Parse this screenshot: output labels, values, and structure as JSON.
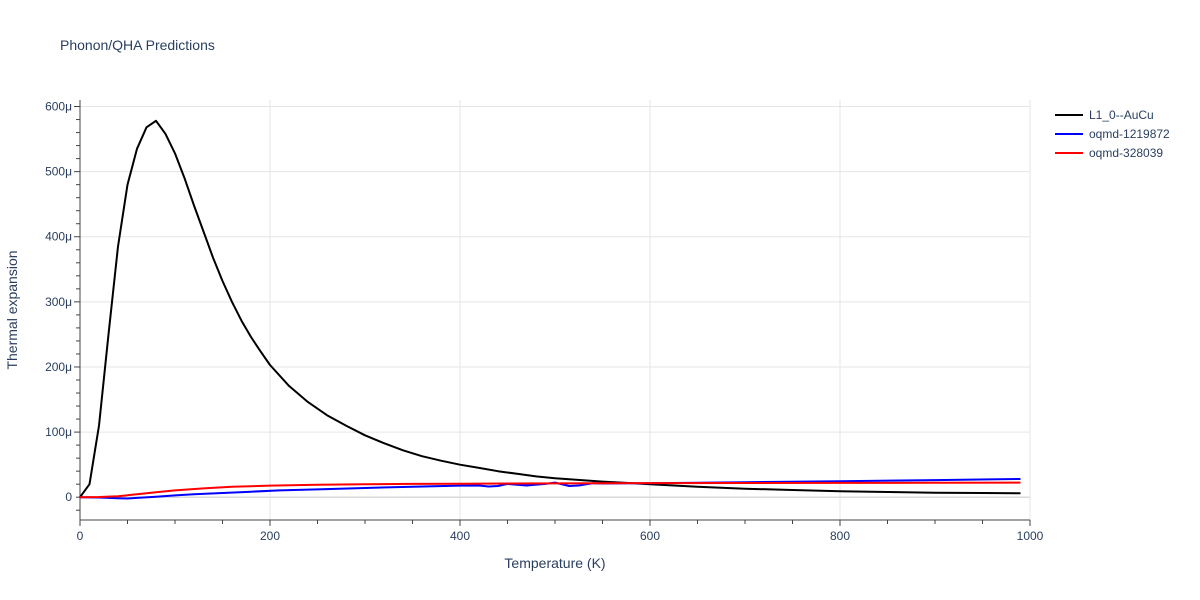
{
  "chart_data": {
    "type": "line",
    "title": "Phonon/QHA Predictions",
    "xlabel": "Temperature (K)",
    "ylabel": "Thermal expansion",
    "xlim": [
      0,
      1000
    ],
    "ylim": [
      -3.5e-05,
      0.00061
    ],
    "x_ticks": [
      {
        "value": 0,
        "label": "0"
      },
      {
        "value": 200,
        "label": "200"
      },
      {
        "value": 400,
        "label": "400"
      },
      {
        "value": 600,
        "label": "600"
      },
      {
        "value": 800,
        "label": "800"
      },
      {
        "value": 1000,
        "label": "1000"
      }
    ],
    "y_ticks": [
      {
        "value": 0,
        "label": "0"
      },
      {
        "value": 0.0001,
        "label": "100μ"
      },
      {
        "value": 0.0002,
        "label": "200μ"
      },
      {
        "value": 0.0003,
        "label": "300μ"
      },
      {
        "value": 0.0004,
        "label": "400μ"
      },
      {
        "value": 0.0005,
        "label": "500μ"
      },
      {
        "value": 0.0006,
        "label": "600μ"
      }
    ],
    "grid": true,
    "legend_position": "top-right",
    "series": [
      {
        "name": "L1_0--AuCu",
        "color": "#000000",
        "points": [
          [
            0,
            0
          ],
          [
            10,
            2e-05
          ],
          [
            20,
            0.00011
          ],
          [
            30,
            0.00025
          ],
          [
            40,
            0.000385
          ],
          [
            50,
            0.00048
          ],
          [
            60,
            0.000535
          ],
          [
            70,
            0.000568
          ],
          [
            80,
            0.000578
          ],
          [
            90,
            0.000558
          ],
          [
            100,
            0.000528
          ],
          [
            110,
            0.00049
          ],
          [
            120,
            0.000448
          ],
          [
            130,
            0.000408
          ],
          [
            140,
            0.000368
          ],
          [
            150,
            0.000332
          ],
          [
            160,
            0.0003
          ],
          [
            170,
            0.000271
          ],
          [
            180,
            0.000246
          ],
          [
            190,
            0.000224
          ],
          [
            200,
            0.000203
          ],
          [
            220,
            0.000171
          ],
          [
            240,
            0.000146
          ],
          [
            260,
            0.000126
          ],
          [
            280,
            0.00011
          ],
          [
            300,
            9.5e-05
          ],
          [
            320,
            8.3e-05
          ],
          [
            340,
            7.2e-05
          ],
          [
            360,
            6.3e-05
          ],
          [
            380,
            5.6e-05
          ],
          [
            400,
            5e-05
          ],
          [
            420,
            4.5e-05
          ],
          [
            440,
            4e-05
          ],
          [
            460,
            3.6e-05
          ],
          [
            480,
            3.2e-05
          ],
          [
            500,
            2.9e-05
          ],
          [
            550,
            2.4e-05
          ],
          [
            600,
            2e-05
          ],
          [
            650,
            1.6e-05
          ],
          [
            700,
            1.3e-05
          ],
          [
            750,
            1.1e-05
          ],
          [
            800,
            9e-06
          ],
          [
            850,
            8e-06
          ],
          [
            900,
            7e-06
          ],
          [
            950,
            6.5e-06
          ],
          [
            990,
            6e-06
          ]
        ]
      },
      {
        "name": "oqmd-1219872",
        "color": "#0000ff",
        "points": [
          [
            0,
            0
          ],
          [
            20,
            -5e-07
          ],
          [
            40,
            -1.5e-06
          ],
          [
            50,
            -2e-06
          ],
          [
            60,
            -1e-06
          ],
          [
            80,
            8e-07
          ],
          [
            100,
            2.8e-06
          ],
          [
            120,
            4.5e-06
          ],
          [
            150,
            6.5e-06
          ],
          [
            180,
            8.5e-06
          ],
          [
            210,
            1.05e-05
          ],
          [
            250,
            1.2e-05
          ],
          [
            300,
            1.42e-05
          ],
          [
            350,
            1.62e-05
          ],
          [
            400,
            1.78e-05
          ],
          [
            420,
            1.8e-05
          ],
          [
            430,
            1.65e-05
          ],
          [
            440,
            1.72e-05
          ],
          [
            450,
            2.05e-05
          ],
          [
            470,
            1.8e-05
          ],
          [
            490,
            2.05e-05
          ],
          [
            500,
            2.25e-05
          ],
          [
            515,
            1.72e-05
          ],
          [
            525,
            1.8e-05
          ],
          [
            540,
            2.15e-05
          ],
          [
            550,
            2.1e-05
          ],
          [
            600,
            2.15e-05
          ],
          [
            700,
            2.3e-05
          ],
          [
            800,
            2.45e-05
          ],
          [
            900,
            2.62e-05
          ],
          [
            990,
            2.8e-05
          ]
        ]
      },
      {
        "name": "oqmd-328039",
        "color": "#ff0000",
        "points": [
          [
            0,
            0
          ],
          [
            20,
            3e-07
          ],
          [
            40,
            1.5e-06
          ],
          [
            60,
            4.5e-06
          ],
          [
            80,
            7.5e-06
          ],
          [
            100,
            1.05e-05
          ],
          [
            130,
            1.35e-05
          ],
          [
            160,
            1.6e-05
          ],
          [
            200,
            1.78e-05
          ],
          [
            250,
            1.9e-05
          ],
          [
            300,
            1.98e-05
          ],
          [
            350,
            2.05e-05
          ],
          [
            400,
            2.08e-05
          ],
          [
            450,
            2.1e-05
          ],
          [
            500,
            2.12e-05
          ],
          [
            550,
            2.14e-05
          ],
          [
            600,
            2.16e-05
          ],
          [
            700,
            2.18e-05
          ],
          [
            800,
            2.2e-05
          ],
          [
            900,
            2.22e-05
          ],
          [
            990,
            2.24e-05
          ]
        ]
      }
    ]
  }
}
